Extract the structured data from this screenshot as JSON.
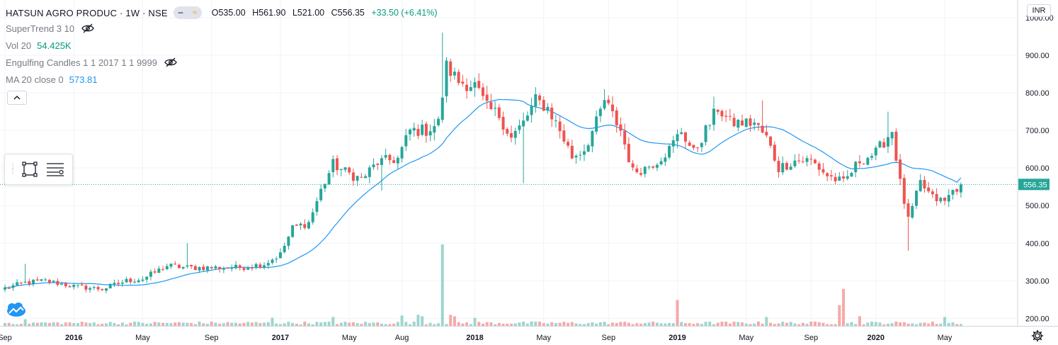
{
  "header": {
    "symbol": "HATSUN AGRO PRODUC · 1W · NSE",
    "ohlc": {
      "open": "O535.00",
      "high": "H561.90",
      "low": "L521.00",
      "close": "C556.35",
      "change": "+33.50 (+6.41%)"
    }
  },
  "indicators": [
    {
      "name": "SuperTrend 3 10",
      "value": "",
      "hidden": true
    },
    {
      "name": "Vol 20",
      "value": "54.425K",
      "hidden": false
    },
    {
      "name": "Engulfing Candles 1 1 2017 1 1 9999",
      "value": "",
      "hidden": true
    },
    {
      "name": "MA 20 close 0",
      "value": "573.81",
      "hidden": false
    }
  ],
  "price_axis": {
    "currency": "INR",
    "last_price_label": "556.35"
  },
  "colors": {
    "up": "#26a69a",
    "down": "#ef5350",
    "ma": "#2196f3",
    "last_price": "#26a69a",
    "vol_up": "#9ed5cf",
    "vol_down": "#f5a9a8"
  },
  "icons": [
    "eye-off-icon",
    "chevron-up-icon",
    "rectangle-tool-icon",
    "menu-lines-icon",
    "tradingview-logo-icon",
    "gear-icon"
  ],
  "chart_data": {
    "type": "candlestick",
    "interval": "1W",
    "ylim": [
      180,
      1030
    ],
    "yticks": [
      200,
      300,
      400,
      500,
      600,
      700,
      800,
      900,
      1000
    ],
    "ytick_labels": [
      "200.00",
      "300.00",
      "400.00",
      "500.00",
      "600.00",
      "700.00",
      "800.00",
      "900.00",
      "1000.00"
    ],
    "xtick_labels": [
      "Sep",
      "2016",
      "May",
      "Sep",
      "2017",
      "May",
      "Aug",
      "2018",
      "May",
      "Sep",
      "2019",
      "May",
      "Sep",
      "2020",
      "May"
    ],
    "xtick_weeks": [
      0,
      17,
      34,
      51,
      68,
      85,
      98,
      116,
      133,
      149,
      166,
      183,
      199,
      215,
      232
    ],
    "grid": true,
    "last_price": 556.35,
    "ma_period": 20,
    "ma_last": 573.81,
    "volume_unit": "K",
    "volume_spikes": [
      {
        "week": 5,
        "volume": 90,
        "dir": "up"
      },
      {
        "week": 66,
        "volume": 110,
        "dir": "up"
      },
      {
        "week": 81,
        "volume": 120,
        "dir": "up"
      },
      {
        "week": 98,
        "volume": 140,
        "dir": "up"
      },
      {
        "week": 102,
        "volume": 150,
        "dir": "up"
      },
      {
        "week": 103,
        "volume": 130,
        "dir": "up"
      },
      {
        "week": 108,
        "volume": 1100,
        "dir": "up"
      },
      {
        "week": 110,
        "volume": 150,
        "dir": "down"
      },
      {
        "week": 111,
        "volume": 130,
        "dir": "down"
      },
      {
        "week": 116,
        "volume": 110,
        "dir": "up"
      },
      {
        "week": 166,
        "volume": 350,
        "dir": "down"
      },
      {
        "week": 188,
        "volume": 120,
        "dir": "up"
      },
      {
        "week": 206,
        "volume": 280,
        "dir": "down"
      },
      {
        "week": 207,
        "volume": 500,
        "dir": "down"
      },
      {
        "week": 211,
        "volume": 130,
        "dir": "down"
      },
      {
        "week": 232,
        "volume": 120,
        "dir": "up"
      }
    ],
    "close_anchors": [
      [
        0,
        280
      ],
      [
        5,
        295
      ],
      [
        10,
        300
      ],
      [
        17,
        285
      ],
      [
        24,
        278
      ],
      [
        30,
        300
      ],
      [
        34,
        305
      ],
      [
        40,
        340
      ],
      [
        45,
        335
      ],
      [
        51,
        335
      ],
      [
        58,
        335
      ],
      [
        64,
        345
      ],
      [
        68,
        370
      ],
      [
        71,
        440
      ],
      [
        75,
        455
      ],
      [
        78,
        540
      ],
      [
        81,
        610
      ],
      [
        84,
        590
      ],
      [
        88,
        570
      ],
      [
        92,
        615
      ],
      [
        97,
        625
      ],
      [
        100,
        700
      ],
      [
        104,
        700
      ],
      [
        107,
        720
      ],
      [
        109,
        870
      ],
      [
        112,
        830
      ],
      [
        116,
        820
      ],
      [
        119,
        760
      ],
      [
        122,
        740
      ],
      [
        125,
        680
      ],
      [
        128,
        720
      ],
      [
        131,
        780
      ],
      [
        134,
        760
      ],
      [
        137,
        700
      ],
      [
        140,
        630
      ],
      [
        143,
        650
      ],
      [
        146,
        720
      ],
      [
        148,
        780
      ],
      [
        152,
        700
      ],
      [
        155,
        590
      ],
      [
        158,
        600
      ],
      [
        161,
        620
      ],
      [
        164,
        650
      ],
      [
        167,
        700
      ],
      [
        170,
        640
      ],
      [
        173,
        700
      ],
      [
        176,
        760
      ],
      [
        179,
        720
      ],
      [
        182,
        720
      ],
      [
        185,
        720
      ],
      [
        188,
        680
      ],
      [
        191,
        600
      ],
      [
        195,
        620
      ],
      [
        199,
        620
      ],
      [
        203,
        580
      ],
      [
        207,
        560
      ],
      [
        211,
        620
      ],
      [
        215,
        640
      ],
      [
        219,
        700
      ],
      [
        221,
        560
      ],
      [
        223,
        460
      ],
      [
        226,
        560
      ],
      [
        229,
        520
      ],
      [
        232,
        510
      ],
      [
        234,
        540
      ],
      [
        236,
        556.35
      ]
    ],
    "spikes": [
      {
        "week": 108,
        "high": 960
      },
      {
        "week": 128,
        "low": 560
      },
      {
        "week": 93,
        "low": 540
      },
      {
        "week": 223,
        "low": 380
      },
      {
        "week": 218,
        "high": 750
      },
      {
        "week": 45,
        "high": 400
      },
      {
        "week": 5,
        "high": 345
      },
      {
        "week": 148,
        "high": 810
      },
      {
        "week": 175,
        "high": 790
      },
      {
        "week": 187,
        "high": 780
      }
    ]
  }
}
